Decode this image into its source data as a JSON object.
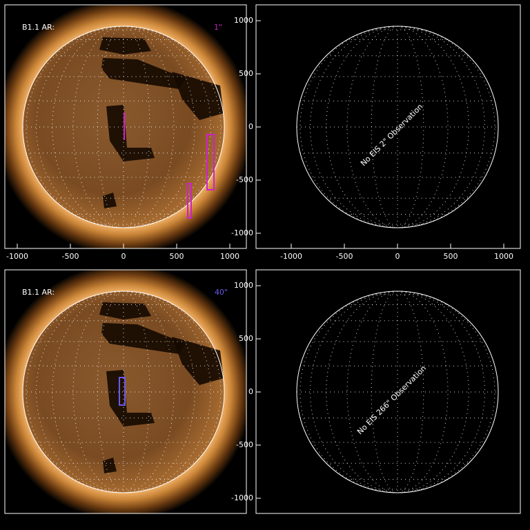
{
  "panels": [
    {
      "label": "B1.1 AR:",
      "slit": "1\"",
      "xticks": [
        -1000,
        -500,
        0,
        500,
        1000
      ]
    },
    {
      "message": "No EIS 2\" Observation",
      "xticks": [
        -1000,
        -500,
        0,
        500,
        1000
      ],
      "yticks": [
        1000,
        500,
        0,
        -500,
        -1000
      ]
    },
    {
      "label": "B1.1 AR:",
      "slit": "40\""
    },
    {
      "message": "No EIS 266\" Observation",
      "yticks": [
        1000,
        500,
        0,
        -500,
        -1000
      ]
    }
  ]
}
